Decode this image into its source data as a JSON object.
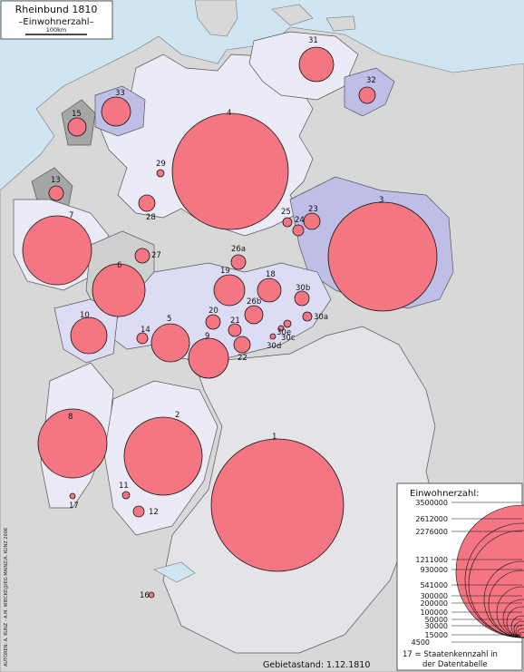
{
  "title": "Rheinbund 1810",
  "subtitle": "–Einwohnerzahl–",
  "scale_label": "100km",
  "status_date": "Gebietastand: 1.12.1810",
  "credits": "AUTOREN: A. KUNZ - A.M. WIECKE@IEG MAINZ/A. KUNZ 2006",
  "colors": {
    "sea": "#cfe6f2",
    "outside_land": "#d8d8d8",
    "large_state": "#ebebf8",
    "territory_lavender": "#dcdcf4",
    "territory_blue": "#bebee6",
    "territory_gray": "#a6a6a6",
    "territory_light_gray": "#cfcfcf",
    "bavaria": "#e4e4e8",
    "circle_fill": "#f47682"
  },
  "state_labels": [
    {
      "id": "1"
    },
    {
      "id": "2"
    },
    {
      "id": "3"
    },
    {
      "id": "4"
    },
    {
      "id": "5"
    },
    {
      "id": "6"
    },
    {
      "id": "7"
    },
    {
      "id": "8"
    },
    {
      "id": "9"
    },
    {
      "id": "10"
    },
    {
      "id": "11"
    },
    {
      "id": "12"
    },
    {
      "id": "13"
    },
    {
      "id": "14"
    },
    {
      "id": "15"
    },
    {
      "id": "16"
    },
    {
      "id": "17"
    },
    {
      "id": "18"
    },
    {
      "id": "19"
    },
    {
      "id": "20"
    },
    {
      "id": "21"
    },
    {
      "id": "22"
    },
    {
      "id": "23"
    },
    {
      "id": "24"
    },
    {
      "id": "25"
    },
    {
      "id": "26a"
    },
    {
      "id": "26b"
    },
    {
      "id": "27"
    },
    {
      "id": "28"
    },
    {
      "id": "29"
    },
    {
      "id": "30a"
    },
    {
      "id": "30b"
    },
    {
      "id": "30c"
    },
    {
      "id": "30d"
    },
    {
      "id": "30e"
    },
    {
      "id": "31"
    },
    {
      "id": "32"
    },
    {
      "id": "33"
    }
  ],
  "legend": {
    "title": "Einwohnerzahl:",
    "values": [
      "3500000",
      "2612000",
      "2276000",
      "1211000",
      "930000",
      "541000",
      "300000",
      "200000",
      "100000",
      "50000",
      "30000",
      "15000",
      "4500"
    ],
    "note_line1": "17 = Staatenkennzahl in",
    "note_line2": "der Datentabelle"
  }
}
